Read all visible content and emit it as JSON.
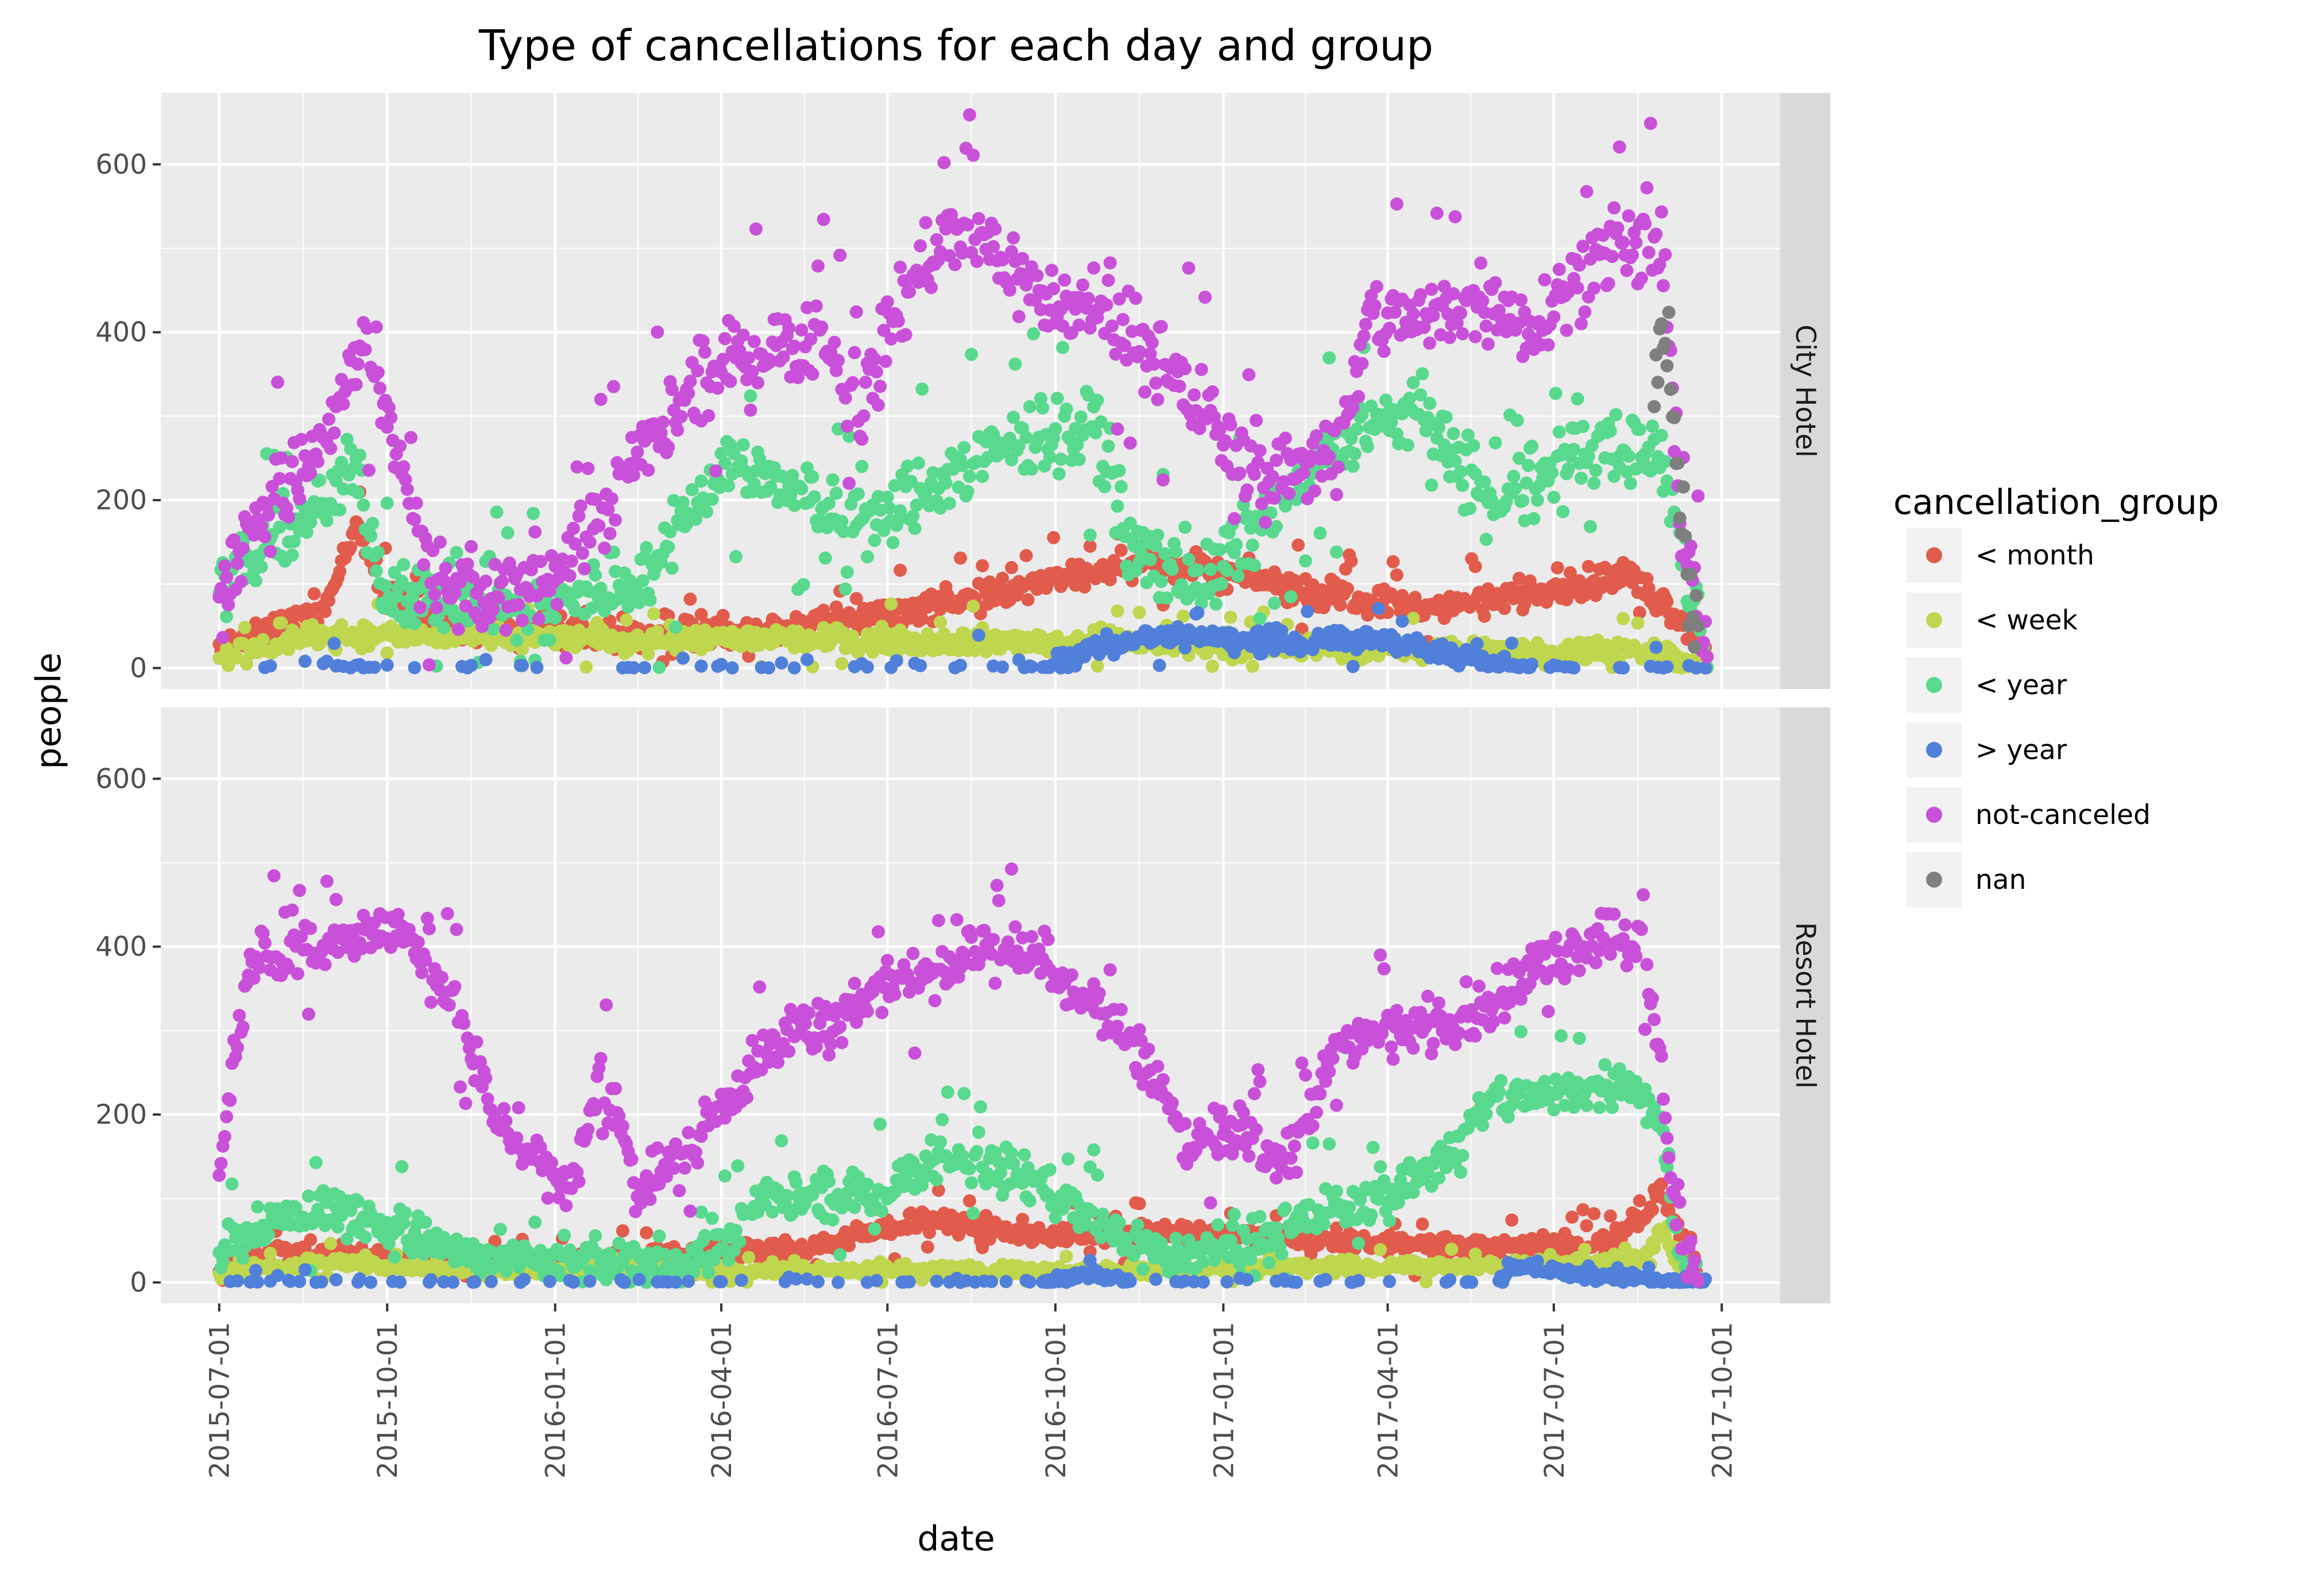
{
  "chart_data": {
    "type": "scatter",
    "title": "Type of cancellations for each day and group",
    "xlabel": "date",
    "ylabel": "people",
    "facet_variable": "hotel",
    "facets": [
      "City Hotel",
      "Resort Hotel"
    ],
    "x_ticks": [
      "2015-07-01",
      "2015-10-01",
      "2016-01-01",
      "2016-04-01",
      "2016-07-01",
      "2016-10-01",
      "2017-01-01",
      "2017-04-01",
      "2017-07-01",
      "2017-10-01"
    ],
    "xlim": [
      "2015-05-30",
      "2017-11-02"
    ],
    "y_ticks": [
      0,
      200,
      400,
      600
    ],
    "ylim": [
      -25,
      685
    ],
    "grid": true,
    "legend_title": "cancellation_group",
    "legend_position": "right",
    "series": [
      {
        "name": "< month",
        "color": "#e15c4c",
        "city": {
          "level": [
            [
              0,
              20
            ],
            [
              30,
              45
            ],
            [
              60,
              80
            ],
            [
              75,
              170
            ],
            [
              90,
              90
            ],
            [
              120,
              50
            ],
            [
              200,
              40
            ],
            [
              300,
              45
            ],
            [
              380,
              70
            ],
            [
              430,
              90
            ],
            [
              470,
              110
            ],
            [
              500,
              130
            ],
            [
              560,
              110
            ],
            [
              600,
              90
            ],
            [
              660,
              70
            ],
            [
              720,
              90
            ],
            [
              770,
              110
            ],
            [
              790,
              80
            ],
            [
              800,
              60
            ],
            [
              810,
              40
            ],
            [
              815,
              5
            ]
          ],
          "spread": 25
        },
        "resort": {
          "level": [
            [
              0,
              15
            ],
            [
              30,
              35
            ],
            [
              60,
              35
            ],
            [
              90,
              30
            ],
            [
              120,
              20
            ],
            [
              180,
              20
            ],
            [
              270,
              35
            ],
            [
              320,
              40
            ],
            [
              360,
              60
            ],
            [
              380,
              75
            ],
            [
              450,
              55
            ],
            [
              520,
              60
            ],
            [
              600,
              50
            ],
            [
              660,
              45
            ],
            [
              700,
              40
            ],
            [
              760,
              50
            ],
            [
              780,
              80
            ],
            [
              790,
              110
            ],
            [
              800,
              60
            ],
            [
              810,
              5
            ]
          ],
          "spread": 18
        }
      },
      {
        "name": "< week",
        "color": "#bfd64f",
        "city": {
          "level": [
            [
              0,
              15
            ],
            [
              60,
              40
            ],
            [
              200,
              35
            ],
            [
              300,
              35
            ],
            [
              480,
              30
            ],
            [
              600,
              25
            ],
            [
              720,
              20
            ],
            [
              790,
              20
            ],
            [
              800,
              10
            ],
            [
              815,
              5
            ]
          ],
          "spread": 20
        },
        "resort": {
          "level": [
            [
              0,
              8
            ],
            [
              60,
              25
            ],
            [
              120,
              15
            ],
            [
              300,
              15
            ],
            [
              480,
              15
            ],
            [
              720,
              20
            ],
            [
              780,
              30
            ],
            [
              790,
              60
            ],
            [
              800,
              20
            ],
            [
              810,
              3
            ]
          ],
          "spread": 10
        }
      },
      {
        "name": "< year",
        "color": "#58d98e",
        "city": {
          "level": [
            [
              0,
              100
            ],
            [
              30,
              150
            ],
            [
              60,
              200
            ],
            [
              75,
              240
            ],
            [
              90,
              100
            ],
            [
              150,
              70
            ],
            [
              180,
              70
            ],
            [
              240,
              120
            ],
            [
              270,
              230
            ],
            [
              300,
              240
            ],
            [
              330,
              190
            ],
            [
              360,
              170
            ],
            [
              390,
              220
            ],
            [
              420,
              250
            ],
            [
              450,
              280
            ],
            [
              480,
              290
            ],
            [
              500,
              140
            ],
            [
              540,
              100
            ],
            [
              600,
              240
            ],
            [
              630,
              290
            ],
            [
              660,
              300
            ],
            [
              700,
              180
            ],
            [
              720,
              220
            ],
            [
              760,
              270
            ],
            [
              790,
              250
            ],
            [
              800,
              150
            ],
            [
              815,
              10
            ]
          ],
          "spread": 60
        },
        "resort": {
          "level": [
            [
              0,
              30
            ],
            [
              20,
              70
            ],
            [
              60,
              90
            ],
            [
              100,
              60
            ],
            [
              140,
              30
            ],
            [
              200,
              20
            ],
            [
              270,
              30
            ],
            [
              300,
              100
            ],
            [
              360,
              100
            ],
            [
              390,
              150
            ],
            [
              420,
              140
            ],
            [
              450,
              120
            ],
            [
              470,
              80
            ],
            [
              520,
              30
            ],
            [
              560,
              40
            ],
            [
              600,
              80
            ],
            [
              640,
              100
            ],
            [
              670,
              150
            ],
            [
              700,
              220
            ],
            [
              730,
              220
            ],
            [
              770,
              240
            ],
            [
              790,
              200
            ],
            [
              800,
              30
            ],
            [
              810,
              5
            ]
          ],
          "spread": 40
        }
      },
      {
        "name": "> year",
        "color": "#5080d9",
        "city": {
          "level": [
            [
              0,
              0
            ],
            [
              450,
              0
            ],
            [
              480,
              25
            ],
            [
              520,
              40
            ],
            [
              560,
              30
            ],
            [
              600,
              30
            ],
            [
              640,
              35
            ],
            [
              680,
              10
            ],
            [
              720,
              0
            ],
            [
              815,
              0
            ]
          ],
          "spread": 18
        },
        "resort": {
          "level": [
            [
              0,
              0
            ],
            [
              450,
              0
            ],
            [
              480,
              10
            ],
            [
              500,
              0
            ],
            [
              700,
              0
            ],
            [
              710,
              20
            ],
            [
              760,
              5
            ],
            [
              815,
              0
            ]
          ],
          "spread": 8
        }
      },
      {
        "name": "not-canceled",
        "color": "#c951d9",
        "city": {
          "level": [
            [
              0,
              80
            ],
            [
              20,
              180
            ],
            [
              40,
              220
            ],
            [
              60,
              280
            ],
            [
              80,
              400
            ],
            [
              95,
              260
            ],
            [
              120,
              90
            ],
            [
              150,
              80
            ],
            [
              180,
              120
            ],
            [
              200,
              150
            ],
            [
              240,
              280
            ],
            [
              270,
              350
            ],
            [
              300,
              380
            ],
            [
              330,
              400
            ],
            [
              350,
              300
            ],
            [
              370,
              420
            ],
            [
              390,
              500
            ],
            [
              420,
              510
            ],
            [
              450,
              440
            ],
            [
              480,
              420
            ],
            [
              510,
              380
            ],
            [
              540,
              300
            ],
            [
              570,
              220
            ],
            [
              600,
              250
            ],
            [
              620,
              300
            ],
            [
              630,
              420
            ],
            [
              660,
              410
            ],
            [
              690,
              440
            ],
            [
              720,
              410
            ],
            [
              740,
              460
            ],
            [
              770,
              500
            ],
            [
              790,
              500
            ],
            [
              800,
              200
            ],
            [
              815,
              10
            ]
          ],
          "spread": 70
        },
        "resort": {
          "level": [
            [
              0,
              140
            ],
            [
              10,
              300
            ],
            [
              20,
              400
            ],
            [
              50,
              390
            ],
            [
              80,
              420
            ],
            [
              100,
              420
            ],
            [
              130,
              330
            ],
            [
              150,
              200
            ],
            [
              170,
              160
            ],
            [
              190,
              100
            ],
            [
              210,
              250
            ],
            [
              230,
              120
            ],
            [
              250,
              140
            ],
            [
              270,
              200
            ],
            [
              290,
              250
            ],
            [
              320,
              310
            ],
            [
              340,
              300
            ],
            [
              360,
              360
            ],
            [
              390,
              360
            ],
            [
              420,
              410
            ],
            [
              450,
              380
            ],
            [
              480,
              330
            ],
            [
              510,
              260
            ],
            [
              530,
              160
            ],
            [
              550,
              190
            ],
            [
              570,
              160
            ],
            [
              590,
              150
            ],
            [
              610,
              280
            ],
            [
              640,
              300
            ],
            [
              680,
              310
            ],
            [
              720,
              370
            ],
            [
              760,
              420
            ],
            [
              780,
              400
            ],
            [
              790,
              250
            ],
            [
              800,
              40
            ],
            [
              810,
              5
            ]
          ],
          "spread": 45
        }
      },
      {
        "name": "nan",
        "color": "#7f7f7f",
        "city": {
          "level": [
            [
              786,
              300
            ],
            [
              790,
              410
            ],
            [
              795,
              350
            ],
            [
              800,
              200
            ],
            [
              805,
              80
            ],
            [
              810,
              10
            ]
          ],
          "spread": 80
        },
        "resort": null
      }
    ],
    "data_note": "level: [day offset from 2015-07-01, people] knots of each series' daily trend; spread: half-width of the daily scatter around it"
  }
}
